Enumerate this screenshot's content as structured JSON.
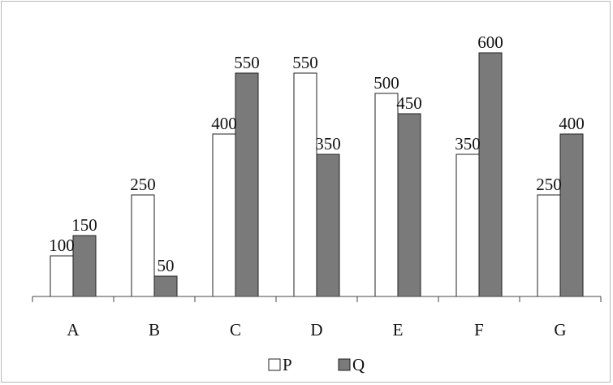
{
  "chart_data": {
    "type": "bar",
    "title": "",
    "xlabel": "",
    "ylabel": "",
    "categories": [
      "A",
      "B",
      "C",
      "D",
      "E",
      "F",
      "G"
    ],
    "series": [
      {
        "name": "P",
        "values": [
          100,
          250,
          400,
          550,
          500,
          350,
          250
        ],
        "color": "#ffffff"
      },
      {
        "name": "Q",
        "values": [
          150,
          50,
          550,
          350,
          450,
          600,
          400
        ],
        "color": "#7a7a7a"
      }
    ],
    "ylim": [
      0,
      600
    ],
    "grid": false,
    "legend_position": "bottom"
  }
}
